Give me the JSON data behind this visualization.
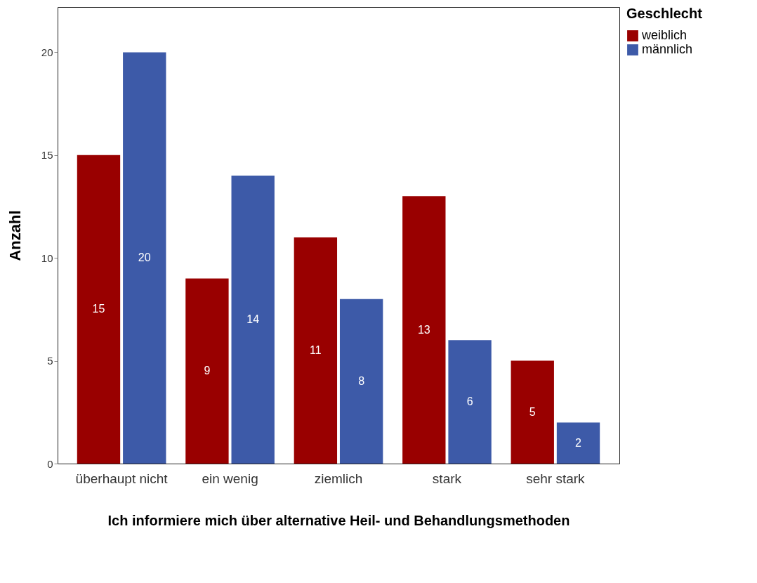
{
  "chart_data": {
    "type": "bar",
    "xlabel": "Ich informiere mich über alternative Heil- und Behandlungsmethoden",
    "ylabel": "Anzahl",
    "legend_title": "Geschlecht",
    "legend": "top right",
    "categories": [
      "überhaupt nicht",
      "ein wenig",
      "ziemlich",
      "stark",
      "sehr stark"
    ],
    "series": [
      {
        "name": "weiblich",
        "color": "#990000",
        "values": [
          15,
          9,
          11,
          13,
          5
        ]
      },
      {
        "name": "männlich",
        "color": "#3d5aa8",
        "values": [
          20,
          14,
          8,
          6,
          2
        ]
      }
    ],
    "ylim": [
      0,
      22.2
    ],
    "yticks": [
      0,
      5,
      10,
      15,
      20
    ],
    "data_labels": true
  }
}
